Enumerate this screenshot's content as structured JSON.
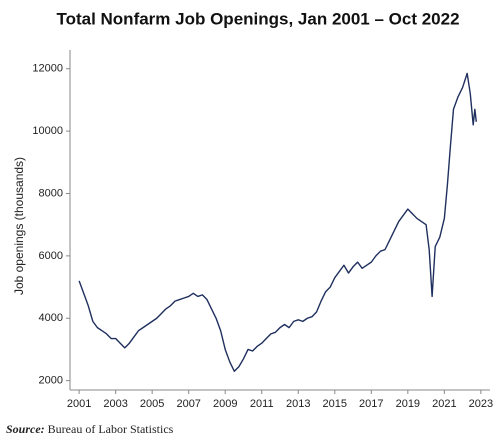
{
  "chart_data": {
    "type": "line",
    "title": "Total Nonfarm Job Openings, Jan 2001 – Oct 2022",
    "y_label": "Job openings (thousands)",
    "source_label": "Source:",
    "source": "Bureau of Labor Statistics",
    "x": [
      2001.0,
      2001.25,
      2001.5,
      2001.75,
      2002.0,
      2002.25,
      2002.5,
      2002.75,
      2003.0,
      2003.25,
      2003.5,
      2003.75,
      2004.0,
      2004.25,
      2004.5,
      2004.75,
      2005.0,
      2005.25,
      2005.5,
      2005.75,
      2006.0,
      2006.25,
      2006.5,
      2006.75,
      2007.0,
      2007.25,
      2007.5,
      2007.75,
      2008.0,
      2008.25,
      2008.5,
      2008.75,
      2009.0,
      2009.25,
      2009.5,
      2009.75,
      2010.0,
      2010.25,
      2010.5,
      2010.75,
      2011.0,
      2011.25,
      2011.5,
      2011.75,
      2012.0,
      2012.25,
      2012.5,
      2012.75,
      2013.0,
      2013.25,
      2013.5,
      2013.75,
      2014.0,
      2014.25,
      2014.5,
      2014.75,
      2015.0,
      2015.25,
      2015.5,
      2015.75,
      2016.0,
      2016.25,
      2016.5,
      2016.75,
      2017.0,
      2017.25,
      2017.5,
      2017.75,
      2018.0,
      2018.25,
      2018.5,
      2018.75,
      2019.0,
      2019.25,
      2019.5,
      2019.75,
      2020.0,
      2020.17,
      2020.33,
      2020.5,
      2020.75,
      2021.0,
      2021.17,
      2021.33,
      2021.5,
      2021.75,
      2022.0,
      2022.25,
      2022.42,
      2022.58,
      2022.67,
      2022.75
    ],
    "series": [
      {
        "name": "Job openings",
        "color": "#1f2f5e",
        "values": [
          5200,
          4800,
          4400,
          3900,
          3700,
          3600,
          3500,
          3350,
          3350,
          3200,
          3050,
          3200,
          3400,
          3600,
          3700,
          3800,
          3900,
          4000,
          4150,
          4300,
          4400,
          4550,
          4600,
          4650,
          4700,
          4800,
          4700,
          4750,
          4600,
          4300,
          4000,
          3600,
          3000,
          2600,
          2300,
          2450,
          2700,
          3000,
          2950,
          3100,
          3200,
          3350,
          3500,
          3550,
          3700,
          3800,
          3700,
          3900,
          3950,
          3900,
          4000,
          4050,
          4200,
          4550,
          4850,
          5000,
          5300,
          5500,
          5700,
          5450,
          5650,
          5800,
          5600,
          5700,
          5800,
          6000,
          6150,
          6200,
          6500,
          6800,
          7100,
          7300,
          7500,
          7350,
          7200,
          7100,
          7000,
          6200,
          4700,
          6300,
          6600,
          7200,
          8300,
          9500,
          10700,
          11100,
          11400,
          11850,
          11200,
          10200,
          10700,
          10300
        ]
      }
    ],
    "xlim": [
      2000.5,
      2023.5
    ],
    "ylim": [
      1700,
      12600
    ],
    "xticks": [
      2001,
      2003,
      2005,
      2007,
      2009,
      2011,
      2013,
      2015,
      2017,
      2019,
      2021,
      2023
    ],
    "yticks": [
      2000,
      4000,
      6000,
      8000,
      10000,
      12000
    ]
  }
}
